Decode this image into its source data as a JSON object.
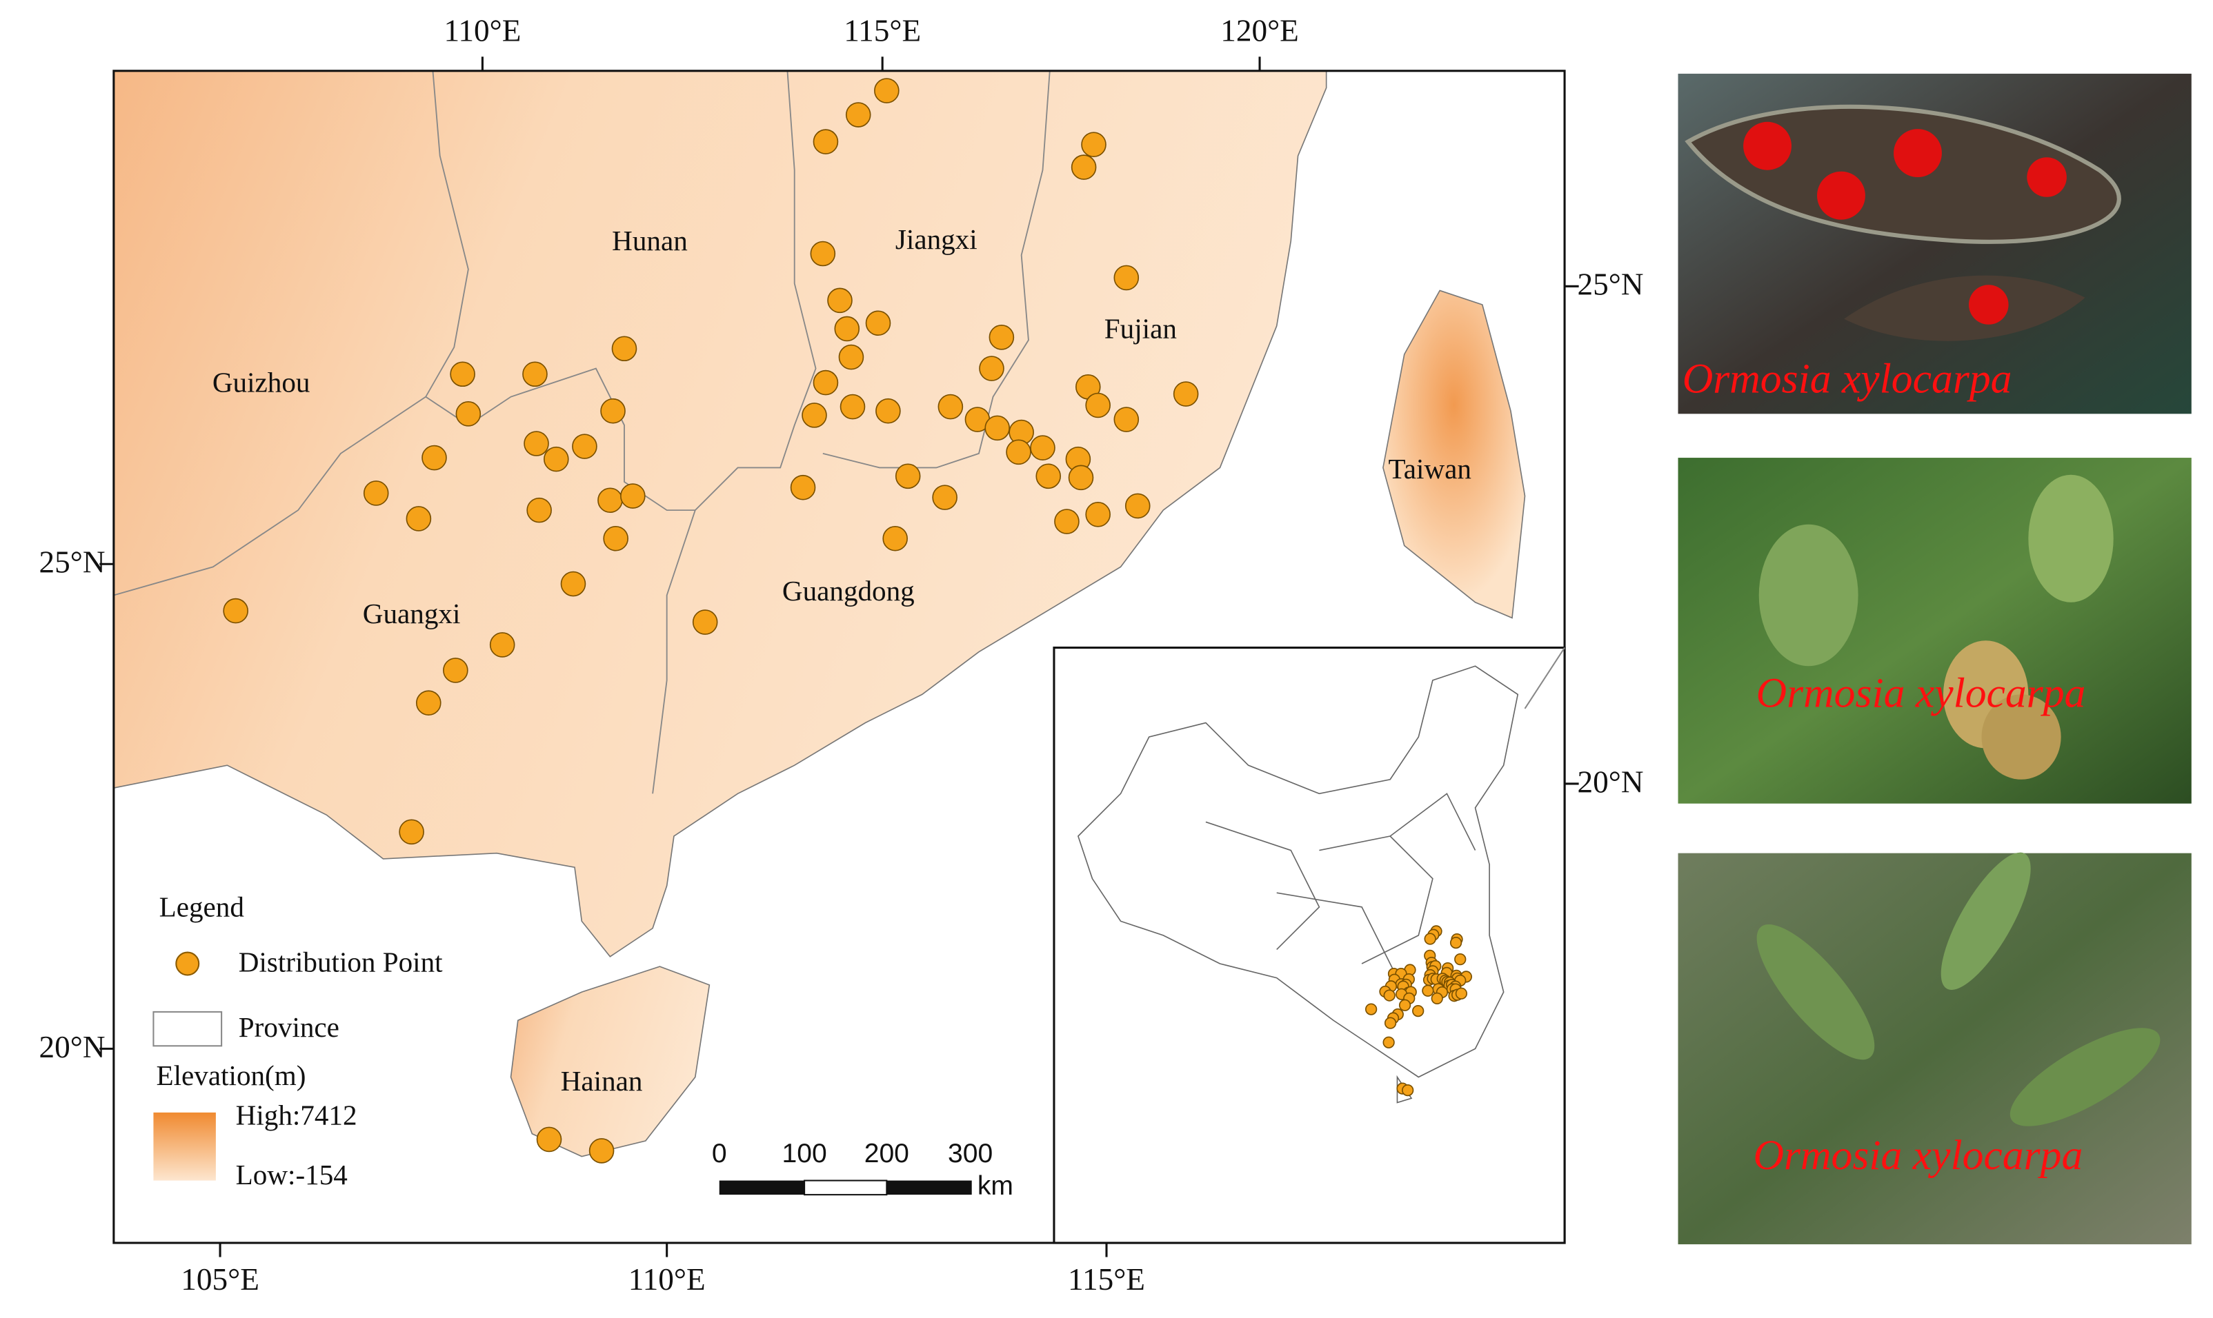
{
  "map": {
    "axes": {
      "top": [
        "110°E",
        "115°E",
        "120°E"
      ],
      "bottom": [
        "105°E",
        "110°E",
        "115°E"
      ],
      "left": [
        "25°N",
        "20°N"
      ],
      "right": [
        "25°N",
        "20°N"
      ]
    },
    "provinces": [
      "Hunan",
      "Jiangxi",
      "Fujian",
      "Guizhou",
      "Guangxi",
      "Guangdong",
      "Taiwan",
      "Hainan"
    ],
    "legend": {
      "title": "Legend",
      "point": "Distribution Point",
      "province": "Province",
      "elevation": "Elevation(m)",
      "high": "High:7412",
      "low": "Low:-154"
    },
    "scale_bar": {
      "labels": [
        "0",
        "100",
        "200",
        "300"
      ],
      "unit": "km"
    }
  },
  "photos": {
    "captions": [
      "Ormosia xylocarpa",
      "Ormosia xylocarpa",
      "Ormosia xylocarpa"
    ]
  }
}
